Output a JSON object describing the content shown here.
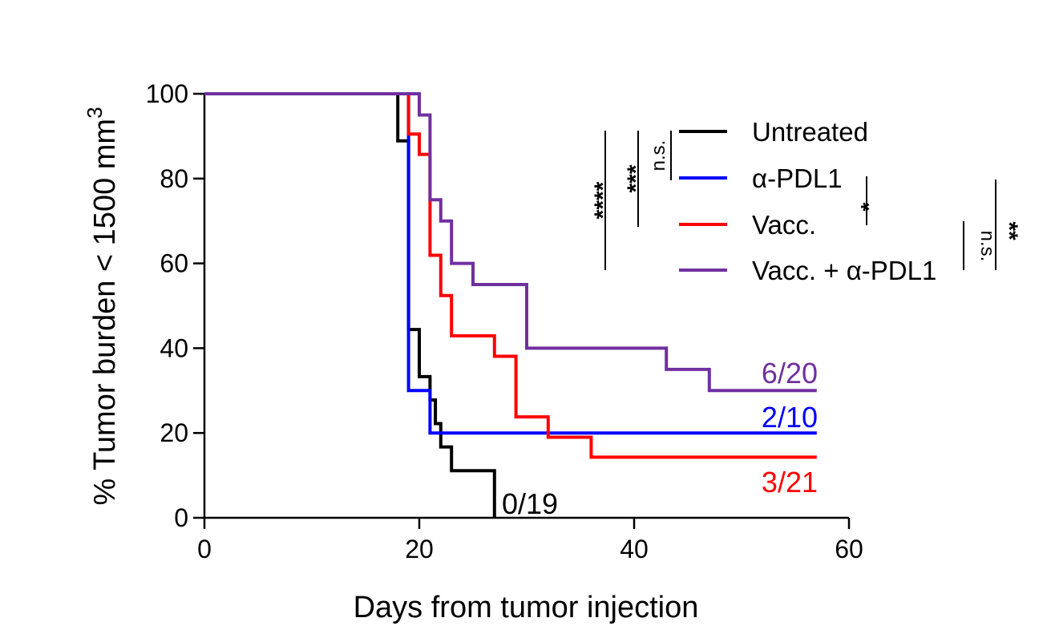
{
  "chart_data": {
    "type": "line",
    "subtype": "kaplan-meier-step",
    "xlabel": "Days from tumor injection",
    "ylabel_main": "% Tumor burden < 1500 mm",
    "ylabel_sup": "3",
    "xlim": [
      0,
      60
    ],
    "ylim": [
      0,
      100
    ],
    "xticks": [
      "0",
      "20",
      "40",
      "60"
    ],
    "yticks": [
      "0",
      "20",
      "40",
      "60",
      "80",
      "100"
    ],
    "legend": [
      {
        "label": "Untreated",
        "color": "#000000"
      },
      {
        "label": "α-PDL1",
        "color": "#0000ff"
      },
      {
        "label": "Vacc.",
        "color": "#ff0000"
      },
      {
        "label": "Vacc. + α-PDL1",
        "color": "#7030a0"
      }
    ],
    "series": [
      {
        "name": "Untreated",
        "color": "#000000",
        "end_label": "0/19",
        "x": [
          0,
          18,
          19,
          20,
          21,
          21.5,
          22,
          23,
          25,
          27,
          27
        ],
        "y": [
          100,
          88.9,
          44.4,
          33.3,
          27.8,
          22.2,
          16.7,
          11.1,
          11.1,
          0,
          0
        ]
      },
      {
        "name": "α-PDL1",
        "color": "#0000ff",
        "end_label": "2/10",
        "x": [
          0,
          19,
          21,
          57
        ],
        "y": [
          100,
          30,
          20,
          20
        ]
      },
      {
        "name": "Vacc.",
        "color": "#ff0000",
        "end_label": "3/21",
        "x": [
          0,
          19,
          20,
          21,
          22,
          23,
          27,
          29,
          32,
          36,
          57
        ],
        "y": [
          100,
          90.5,
          85.7,
          61.9,
          52.4,
          42.9,
          38.1,
          23.8,
          19,
          14.3,
          14.3
        ]
      },
      {
        "name": "Vacc. + α-PDL1",
        "color": "#7030a0",
        "end_label": "6/20",
        "x": [
          0,
          20,
          21,
          21.5,
          22,
          23,
          25,
          30,
          43,
          47,
          57
        ],
        "y": [
          100,
          95,
          75,
          75,
          70,
          60,
          55,
          40,
          35,
          30,
          30
        ]
      }
    ],
    "significance": [
      {
        "text": "****",
        "comparison": "Untreated vs Vacc. + α-PDL1"
      },
      {
        "text": "***",
        "comparison": "Untreated vs Vacc."
      },
      {
        "text": "n.s.",
        "comparison": "Untreated vs α-PDL1"
      },
      {
        "text": "*",
        "comparison": "α-PDL1 vs Vacc."
      },
      {
        "text": "n.s.",
        "comparison": "Vacc. vs Vacc. + α-PDL1"
      },
      {
        "text": "**",
        "comparison": "α-PDL1 vs Vacc. + α-PDL1"
      }
    ]
  }
}
